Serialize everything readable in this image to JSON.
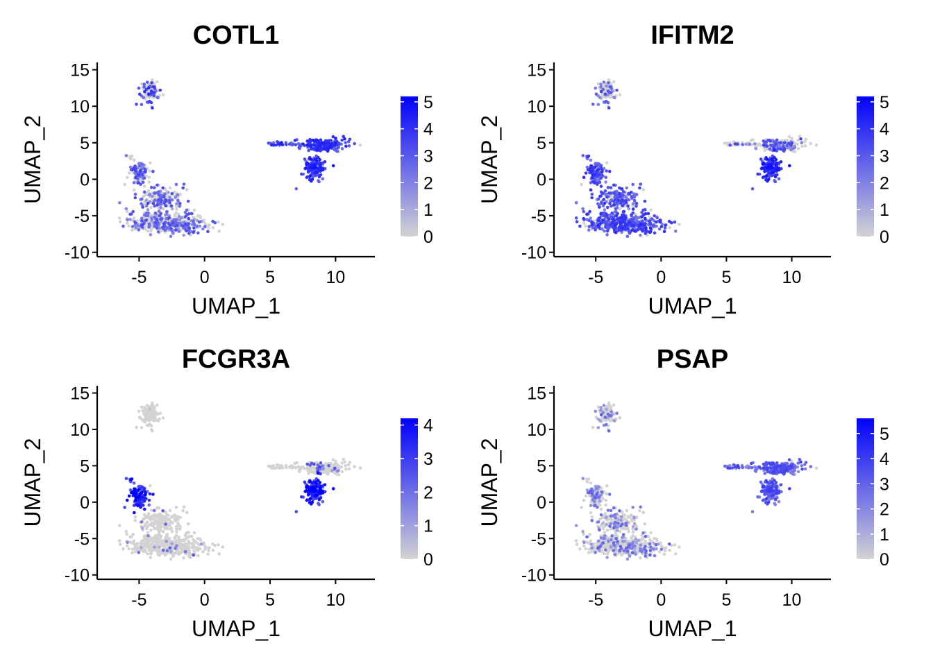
{
  "colors": {
    "low": "#d3d3d3",
    "high": "#0000ff"
  },
  "chart_data": [
    {
      "type": "scatter",
      "title": "COTL1",
      "xlabel": "UMAP_1",
      "ylabel": "UMAP_2",
      "xlim": [
        -8.2,
        13
      ],
      "ylim": [
        -10.6,
        16
      ],
      "xticks": [
        -5,
        0,
        5,
        10
      ],
      "yticks": [
        -10,
        -5,
        0,
        5,
        10,
        15
      ],
      "color_scale": {
        "min": 0,
        "max": 5.2,
        "ticks": [
          0,
          1,
          2,
          3,
          4,
          5
        ]
      },
      "expression": {
        "c1": [
          0.35,
          3.2
        ],
        "c2": [
          0.45,
          2.6
        ],
        "c3": [
          0.55,
          2.5
        ],
        "c4": [
          0.5,
          2.3
        ],
        "c5": [
          0.95,
          3.4
        ],
        "c6": [
          0.97,
          3.6
        ]
      }
    },
    {
      "type": "scatter",
      "title": "IFITM2",
      "xlabel": "UMAP_1",
      "ylabel": "UMAP_2",
      "xlim": [
        -8.2,
        13
      ],
      "ylim": [
        -10.6,
        16
      ],
      "xticks": [
        -5,
        0,
        5,
        10
      ],
      "yticks": [
        -10,
        -5,
        0,
        5,
        10,
        15
      ],
      "color_scale": {
        "min": 0,
        "max": 5.2,
        "ticks": [
          0,
          1,
          2,
          3,
          4,
          5
        ]
      },
      "expression": {
        "c1": [
          0.3,
          2.5
        ],
        "c2": [
          0.85,
          3.0
        ],
        "c3": [
          0.8,
          2.8
        ],
        "c4": [
          0.88,
          3.0
        ],
        "c5": [
          0.35,
          2.5
        ],
        "c6": [
          0.95,
          3.8
        ]
      }
    },
    {
      "type": "scatter",
      "title": "FCGR3A",
      "xlabel": "UMAP_1",
      "ylabel": "UMAP_2",
      "xlim": [
        -8.2,
        13
      ],
      "ylim": [
        -10.6,
        16
      ],
      "xticks": [
        -5,
        0,
        5,
        10
      ],
      "yticks": [
        -10,
        -5,
        0,
        5,
        10,
        15
      ],
      "color_scale": {
        "min": 0,
        "max": 4.2,
        "ticks": [
          0,
          1,
          2,
          3,
          4
        ]
      },
      "expression": {
        "c1": [
          0.02,
          1.0
        ],
        "c2": [
          0.9,
          3.2
        ],
        "c3": [
          0.05,
          1.5
        ],
        "c4": [
          0.04,
          1.5
        ],
        "c5": [
          0.1,
          1.8
        ],
        "c6": [
          0.97,
          3.4
        ]
      }
    },
    {
      "type": "scatter",
      "title": "PSAP",
      "xlabel": "UMAP_1",
      "ylabel": "UMAP_2",
      "xlim": [
        -8.2,
        13
      ],
      "ylim": [
        -10.6,
        16
      ],
      "xticks": [
        -5,
        0,
        5,
        10
      ],
      "yticks": [
        -10,
        -5,
        0,
        5,
        10,
        15
      ],
      "color_scale": {
        "min": 0,
        "max": 5.6,
        "ticks": [
          0,
          1,
          2,
          3,
          4,
          5
        ]
      },
      "expression": {
        "c1": [
          0.25,
          2.0
        ],
        "c2": [
          0.35,
          2.0
        ],
        "c3": [
          0.4,
          2.0
        ],
        "c4": [
          0.3,
          2.0
        ],
        "c5": [
          0.92,
          2.8
        ],
        "c6": [
          0.92,
          3.0
        ]
      }
    }
  ]
}
